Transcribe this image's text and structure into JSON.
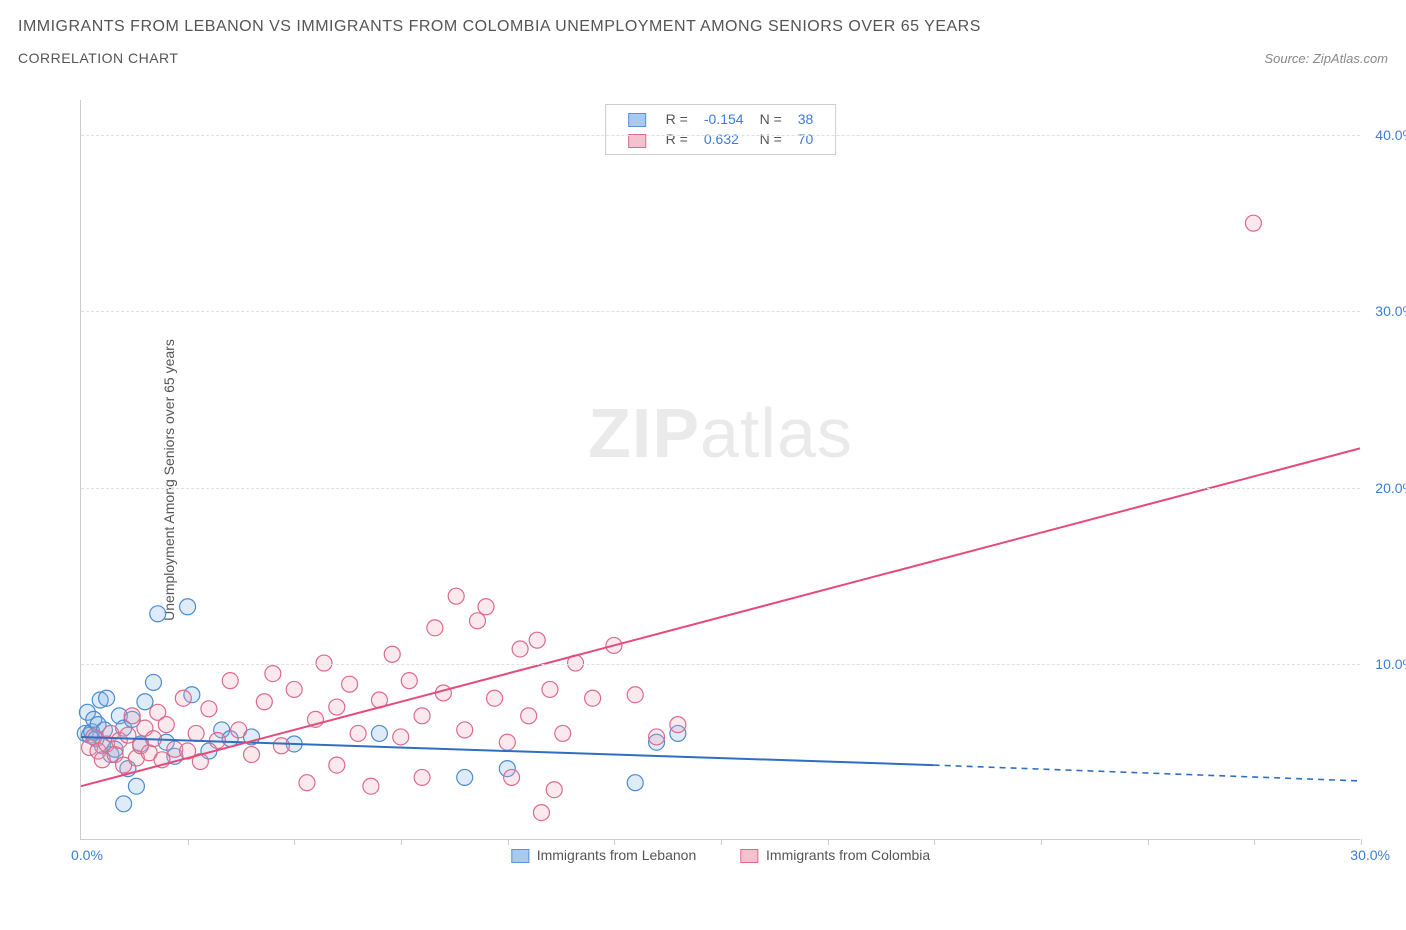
{
  "title_line1": "IMMIGRANTS FROM LEBANON VS IMMIGRANTS FROM COLOMBIA UNEMPLOYMENT AMONG SENIORS OVER 65 YEARS",
  "title_line2": "CORRELATION CHART",
  "source_text": "Source: ZipAtlas.com",
  "yaxis_title": "Unemployment Among Seniors over 65 years",
  "watermark_bold": "ZIP",
  "watermark_light": "atlas",
  "chart": {
    "type": "scatter",
    "xlim": [
      0,
      30
    ],
    "ylim": [
      0,
      42
    ],
    "x_tick_positions": [
      2.5,
      5,
      7.5,
      10,
      12.5,
      15,
      17.5,
      20,
      22.5,
      25,
      27.5,
      30
    ],
    "y_ticks": [
      10,
      20,
      30,
      40
    ],
    "y_tick_labels": [
      "10.0%",
      "20.0%",
      "30.0%",
      "40.0%"
    ],
    "x_label_0": "0.0%",
    "x_label_max": "30.0%",
    "grid_color": "#e0e0e0",
    "axis_color": "#cccccc",
    "tick_label_color": "#3b7dd8",
    "background_color": "#ffffff",
    "marker_radius": 8,
    "marker_fill_opacity": 0.25,
    "marker_stroke_width": 1.2,
    "trend_line_width": 2,
    "series": [
      {
        "name": "Immigrants from Lebanon",
        "swatch_fill": "#a9c9ef",
        "swatch_border": "#5b93d6",
        "marker_fill": "#7ab0e8",
        "marker_stroke": "#4d8bd1",
        "line_color": "#2f6fc2",
        "R_label": "R =",
        "R_value": "-0.154",
        "N_label": "N =",
        "N_value": "38",
        "trend_line": {
          "x1": 0,
          "y1": 5.8,
          "x2_solid": 20,
          "y2_solid": 4.2,
          "x2": 30,
          "y2": 3.3
        },
        "points": [
          [
            0.1,
            6.0
          ],
          [
            0.15,
            7.2
          ],
          [
            0.2,
            5.9
          ],
          [
            0.25,
            6.1
          ],
          [
            0.3,
            6.8
          ],
          [
            0.35,
            5.7
          ],
          [
            0.4,
            6.5
          ],
          [
            0.45,
            7.9
          ],
          [
            0.5,
            5.3
          ],
          [
            0.55,
            6.2
          ],
          [
            0.6,
            8.0
          ],
          [
            0.7,
            4.8
          ],
          [
            0.8,
            5.1
          ],
          [
            0.9,
            7.0
          ],
          [
            1.0,
            6.3
          ],
          [
            1.0,
            2.0
          ],
          [
            1.1,
            4.0
          ],
          [
            1.2,
            6.8
          ],
          [
            1.3,
            3.0
          ],
          [
            1.4,
            5.4
          ],
          [
            1.5,
            7.8
          ],
          [
            1.7,
            8.9
          ],
          [
            1.8,
            12.8
          ],
          [
            2.0,
            5.5
          ],
          [
            2.2,
            4.7
          ],
          [
            2.5,
            13.2
          ],
          [
            2.6,
            8.2
          ],
          [
            3.0,
            5.0
          ],
          [
            3.3,
            6.2
          ],
          [
            3.5,
            5.7
          ],
          [
            4.0,
            5.8
          ],
          [
            5.0,
            5.4
          ],
          [
            7.0,
            6.0
          ],
          [
            9.0,
            3.5
          ],
          [
            10.0,
            4.0
          ],
          [
            13.0,
            3.2
          ],
          [
            13.5,
            5.5
          ],
          [
            14.0,
            6.0
          ]
        ]
      },
      {
        "name": "Immigrants from Colombia",
        "swatch_fill": "#f4c2cf",
        "swatch_border": "#e06a8e",
        "marker_fill": "#efa8bd",
        "marker_stroke": "#dd6a8d",
        "line_color": "#e44b7a",
        "R_label": "R =",
        "R_value": "0.632",
        "N_label": "N =",
        "N_value": "70",
        "trend_line": {
          "x1": 0,
          "y1": 3.0,
          "x2_solid": 30,
          "y2_solid": 22.2,
          "x2": 30,
          "y2": 22.2
        },
        "points": [
          [
            0.2,
            5.2
          ],
          [
            0.3,
            5.8
          ],
          [
            0.4,
            5.0
          ],
          [
            0.5,
            4.5
          ],
          [
            0.6,
            5.4
          ],
          [
            0.7,
            6.0
          ],
          [
            0.8,
            4.8
          ],
          [
            0.9,
            5.6
          ],
          [
            1.0,
            4.2
          ],
          [
            1.1,
            5.9
          ],
          [
            1.2,
            7.0
          ],
          [
            1.3,
            4.6
          ],
          [
            1.4,
            5.3
          ],
          [
            1.5,
            6.3
          ],
          [
            1.6,
            4.9
          ],
          [
            1.7,
            5.7
          ],
          [
            1.8,
            7.2
          ],
          [
            1.9,
            4.5
          ],
          [
            2.0,
            6.5
          ],
          [
            2.2,
            5.1
          ],
          [
            2.4,
            8.0
          ],
          [
            2.5,
            5.0
          ],
          [
            2.7,
            6.0
          ],
          [
            2.8,
            4.4
          ],
          [
            3.0,
            7.4
          ],
          [
            3.2,
            5.6
          ],
          [
            3.5,
            9.0
          ],
          [
            3.7,
            6.2
          ],
          [
            4.0,
            4.8
          ],
          [
            4.3,
            7.8
          ],
          [
            4.5,
            9.4
          ],
          [
            4.7,
            5.3
          ],
          [
            5.0,
            8.5
          ],
          [
            5.3,
            3.2
          ],
          [
            5.5,
            6.8
          ],
          [
            5.7,
            10.0
          ],
          [
            6.0,
            4.2
          ],
          [
            6.0,
            7.5
          ],
          [
            6.3,
            8.8
          ],
          [
            6.5,
            6.0
          ],
          [
            6.8,
            3.0
          ],
          [
            7.0,
            7.9
          ],
          [
            7.3,
            10.5
          ],
          [
            7.5,
            5.8
          ],
          [
            7.7,
            9.0
          ],
          [
            8.0,
            3.5
          ],
          [
            8.0,
            7.0
          ],
          [
            8.3,
            12.0
          ],
          [
            8.5,
            8.3
          ],
          [
            8.8,
            13.8
          ],
          [
            9.0,
            6.2
          ],
          [
            9.3,
            12.4
          ],
          [
            9.5,
            13.2
          ],
          [
            9.7,
            8.0
          ],
          [
            10.0,
            5.5
          ],
          [
            10.1,
            3.5
          ],
          [
            10.3,
            10.8
          ],
          [
            10.5,
            7.0
          ],
          [
            10.7,
            11.3
          ],
          [
            10.8,
            1.5
          ],
          [
            11.0,
            8.5
          ],
          [
            11.1,
            2.8
          ],
          [
            11.3,
            6.0
          ],
          [
            11.6,
            10.0
          ],
          [
            12.0,
            8.0
          ],
          [
            12.5,
            11.0
          ],
          [
            13.0,
            8.2
          ],
          [
            13.5,
            5.8
          ],
          [
            14.0,
            6.5
          ],
          [
            27.5,
            35.0
          ]
        ]
      }
    ],
    "legend_bottom": [
      {
        "label": "Immigrants from Lebanon",
        "fill": "#a9c9ef",
        "border": "#5b93d6"
      },
      {
        "label": "Immigrants from Colombia",
        "fill": "#f4c2cf",
        "border": "#e06a8e"
      }
    ]
  }
}
